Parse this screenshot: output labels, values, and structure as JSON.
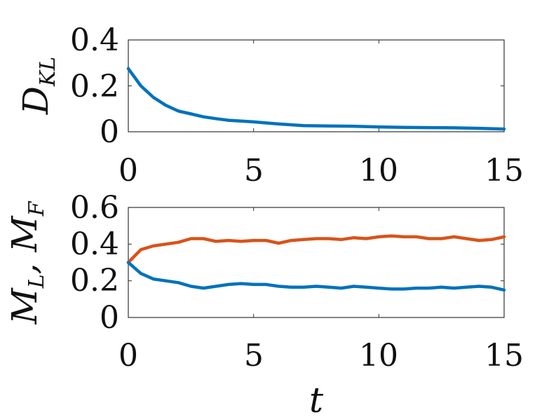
{
  "chart_data": [
    {
      "type": "line",
      "ylabel": "D",
      "ylabel_sub": "KL",
      "xlabel": "",
      "xlim": [
        0,
        15
      ],
      "ylim": [
        0,
        0.4
      ],
      "xticks": [
        "0",
        "5",
        "10",
        "15"
      ],
      "yticks": [
        "0",
        "0.2",
        "0.4"
      ],
      "grid": false,
      "x": [
        0,
        0.5,
        1,
        1.5,
        2,
        2.5,
        3,
        3.5,
        4,
        5,
        6,
        7,
        8,
        9,
        10,
        11,
        12,
        13,
        14,
        15
      ],
      "series": [
        {
          "color": "#0072BD",
          "values": [
            0.275,
            0.2,
            0.15,
            0.115,
            0.09,
            0.078,
            0.065,
            0.057,
            0.05,
            0.043,
            0.034,
            0.027,
            0.025,
            0.024,
            0.021,
            0.019,
            0.018,
            0.017,
            0.015,
            0.012
          ]
        }
      ]
    },
    {
      "type": "line",
      "ylabel": "M",
      "ylabel_sub": "L",
      "ylabel2": "M",
      "ylabel2_sub": "F",
      "xlabel": "t",
      "xlim": [
        0,
        15
      ],
      "ylim": [
        0,
        0.6
      ],
      "xticks": [
        "0",
        "5",
        "10",
        "15"
      ],
      "yticks": [
        "0",
        "0.2",
        "0.4",
        "0.6"
      ],
      "grid": false,
      "x": [
        0,
        0.5,
        1,
        1.5,
        2,
        2.5,
        3,
        3.5,
        4,
        4.5,
        5,
        5.5,
        6,
        6.5,
        7,
        7.5,
        8,
        8.5,
        9,
        9.5,
        10,
        10.5,
        11,
        11.5,
        12,
        12.5,
        13,
        13.5,
        14,
        14.5,
        15
      ],
      "series": [
        {
          "color": "#D95319",
          "values": [
            0.3,
            0.37,
            0.39,
            0.4,
            0.41,
            0.43,
            0.43,
            0.415,
            0.42,
            0.415,
            0.42,
            0.42,
            0.405,
            0.42,
            0.425,
            0.43,
            0.43,
            0.425,
            0.435,
            0.43,
            0.44,
            0.445,
            0.44,
            0.44,
            0.43,
            0.43,
            0.44,
            0.43,
            0.42,
            0.425,
            0.44
          ]
        },
        {
          "color": "#0072BD",
          "values": [
            0.3,
            0.24,
            0.21,
            0.2,
            0.19,
            0.17,
            0.16,
            0.17,
            0.18,
            0.185,
            0.18,
            0.18,
            0.17,
            0.165,
            0.165,
            0.17,
            0.165,
            0.16,
            0.17,
            0.165,
            0.16,
            0.155,
            0.155,
            0.16,
            0.16,
            0.165,
            0.16,
            0.165,
            0.17,
            0.165,
            0.15
          ]
        }
      ]
    }
  ]
}
